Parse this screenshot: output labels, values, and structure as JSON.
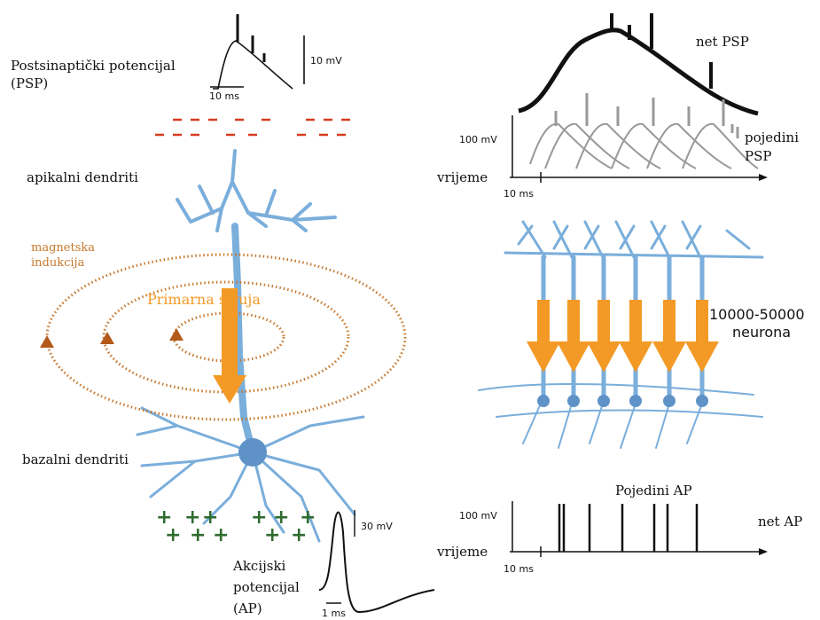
{
  "left": {
    "psp_label": [
      "Postsinaptički potencijal",
      "(PSP)"
    ],
    "psp_time_scale": "10 ms",
    "psp_voltage_scale": "10 mV",
    "apical": "apikalni dendriti",
    "induction": [
      "magnetska",
      "indukcija"
    ],
    "primary_current": "Primarna struja",
    "basal": "bazalni dendriti",
    "ap_voltage_scale": "30 mV",
    "ap_time_scale": "1 ms",
    "ap_label": [
      "Akcijski",
      "potencijal",
      "(AP)"
    ]
  },
  "right": {
    "net_psp": "net PSP",
    "psp_voltage_scale": "100 mV",
    "individual_psp": [
      "pojedini",
      "PSP"
    ],
    "psp_time_axis": "vrijeme",
    "psp_time_scale": "10 ms",
    "neuron_count": [
      "10000-50000",
      "neurona"
    ],
    "individual_ap": "Pojedini AP",
    "ap_voltage_scale": "100 mV",
    "net_ap": "net AP",
    "ap_time_axis": "vrijeme",
    "ap_time_scale": "10 ms"
  }
}
